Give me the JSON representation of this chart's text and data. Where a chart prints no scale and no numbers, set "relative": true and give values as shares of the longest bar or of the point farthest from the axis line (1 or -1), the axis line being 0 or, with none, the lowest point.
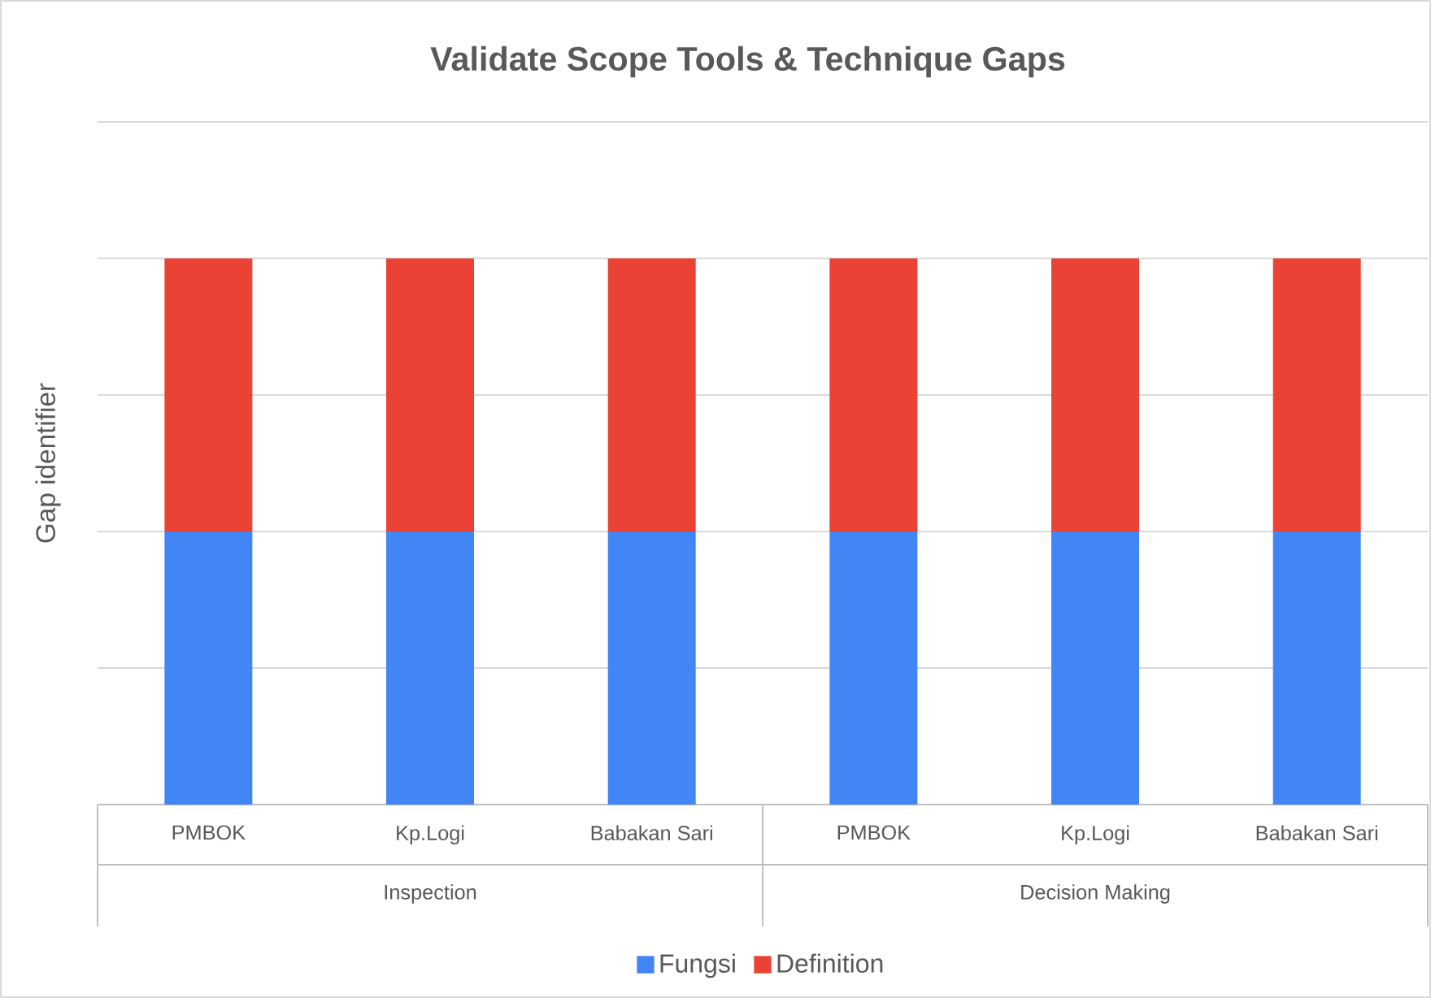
{
  "chart_data": {
    "type": "bar",
    "title": "Validate Scope Tools & Technique Gaps",
    "ylabel": "Gap identifier",
    "categories": [
      "PMBOK",
      "Kp.Logi",
      "Babakan Sari",
      "PMBOK",
      "Kp.Logi",
      "Babakan Sari"
    ],
    "series": [
      {
        "name": "Fungsi",
        "color": "#4285f4",
        "values": [
          0.5,
          0.5,
          0.5,
          0.5,
          0.5,
          0.5
        ]
      },
      {
        "name": "Definition",
        "color": "#ea4335",
        "values": [
          0.5,
          0.5,
          0.5,
          0.5,
          0.5,
          0.5
        ]
      }
    ],
    "stacked": true,
    "relative": true,
    "grid": "y",
    "legend": "bottom",
    "annotations": [
      "Inspection",
      "Decision Making"
    ]
  }
}
